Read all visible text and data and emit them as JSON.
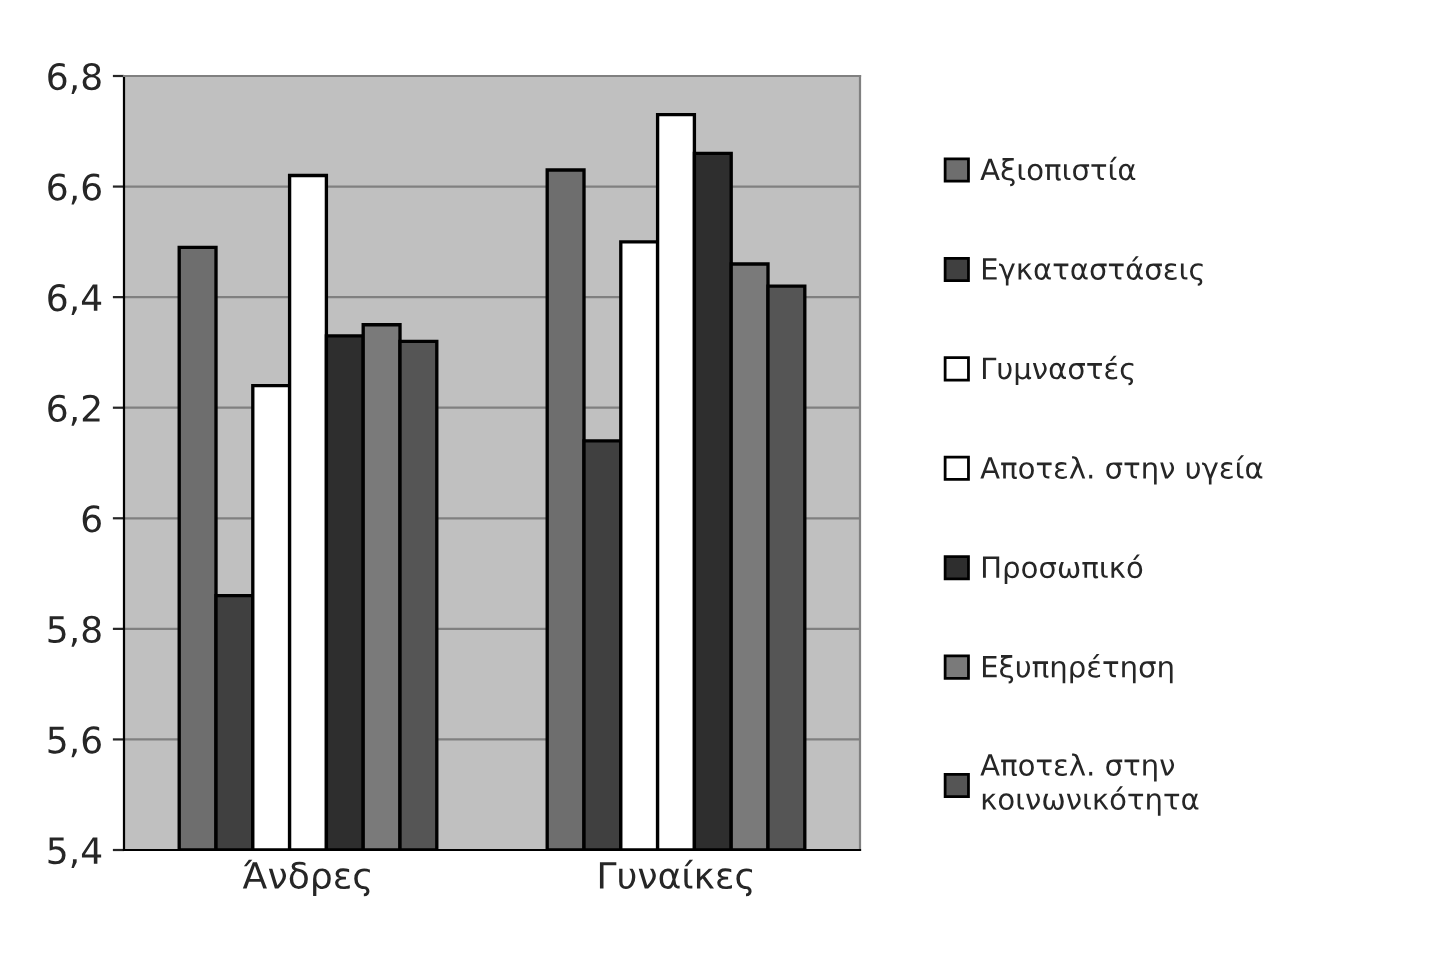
{
  "chart_data": {
    "type": "bar",
    "categories": [
      "Άνδρες",
      "Γυναίκες"
    ],
    "series": [
      {
        "name": "Αξιοπιστία",
        "color": "#6e6e6e",
        "values": [
          6.49,
          6.63
        ]
      },
      {
        "name": "Εγκαταστάσεις",
        "color": "#404040",
        "values": [
          5.86,
          6.14
        ]
      },
      {
        "name": "Γυμναστές",
        "color": "#ffffff",
        "values": [
          6.24,
          6.5
        ]
      },
      {
        "name": "Αποτελ. στην υγεία",
        "color": "#ffffff",
        "values": [
          6.62,
          6.73
        ]
      },
      {
        "name": "Προσωπικό",
        "color": "#2e2e2e",
        "values": [
          6.33,
          6.66
        ]
      },
      {
        "name": "Εξυπηρέτηση",
        "color": "#7a7a7a",
        "values": [
          6.35,
          6.46
        ]
      },
      {
        "name": "Αποτελ. στην\nκοινωνικότητα",
        "color": "#555555",
        "values": [
          6.32,
          6.42
        ]
      }
    ],
    "ylim": [
      5.4,
      6.8
    ],
    "yticks": [
      {
        "value": 5.4,
        "label": "5,4"
      },
      {
        "value": 5.6,
        "label": "5,6"
      },
      {
        "value": 5.8,
        "label": "5,8"
      },
      {
        "value": 6,
        "label": "6"
      },
      {
        "value": 6.2,
        "label": "6,2"
      },
      {
        "value": 6.4,
        "label": "6,4"
      },
      {
        "value": 6.6,
        "label": "6,6"
      },
      {
        "value": 6.8,
        "label": "6,8"
      }
    ],
    "grid": "y",
    "legend": "right"
  }
}
